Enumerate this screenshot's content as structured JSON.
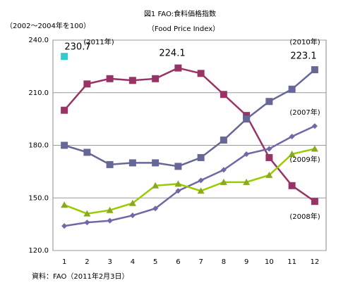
{
  "chart_data": {
    "type": "line",
    "title": "図1 FAO:食料価格指数",
    "subtitle": "（Food Price Index）",
    "y_label": "（2002～2004年を100）",
    "source": "資料：FAO（2011年2月3日）",
    "categories": [
      "1",
      "2",
      "3",
      "4",
      "5",
      "6",
      "7",
      "8",
      "9",
      "10",
      "11",
      "12"
    ],
    "ylim": [
      120,
      240
    ],
    "yticks": [
      {
        "value": 120,
        "label": "120.0"
      },
      {
        "value": 150,
        "label": "150.0"
      },
      {
        "value": 180,
        "label": "180.0"
      },
      {
        "value": 210,
        "label": "210.0"
      },
      {
        "value": 240,
        "label": "240.0"
      }
    ],
    "grid": true,
    "series": [
      {
        "name": "(2008年)",
        "color": "#993366",
        "marker": "square",
        "values": [
          200,
          215,
          218,
          217,
          218,
          224.1,
          221,
          209,
          197,
          173,
          157,
          148
        ]
      },
      {
        "name": "(2010年)",
        "color": "#666699",
        "marker": "square",
        "values": [
          180,
          176,
          169,
          170,
          170,
          168,
          173,
          183,
          195,
          205,
          212,
          223.1
        ]
      },
      {
        "name": "(2007年)",
        "color": "#7066a8",
        "marker": "diamond",
        "values": [
          134,
          136,
          137,
          140,
          144,
          154,
          160,
          166,
          175,
          178,
          185,
          191
        ]
      },
      {
        "name": "(2009年)",
        "color": "#99cc00",
        "marker": "triangle",
        "values": [
          146,
          141,
          143,
          147,
          157,
          158,
          154,
          159,
          159,
          163,
          175,
          178
        ]
      },
      {
        "name": "(2011年)",
        "color": "#33cccc",
        "marker": "square",
        "values": [
          230.7,
          null,
          null,
          null,
          null,
          null,
          null,
          null,
          null,
          null,
          null,
          null
        ]
      }
    ]
  }
}
